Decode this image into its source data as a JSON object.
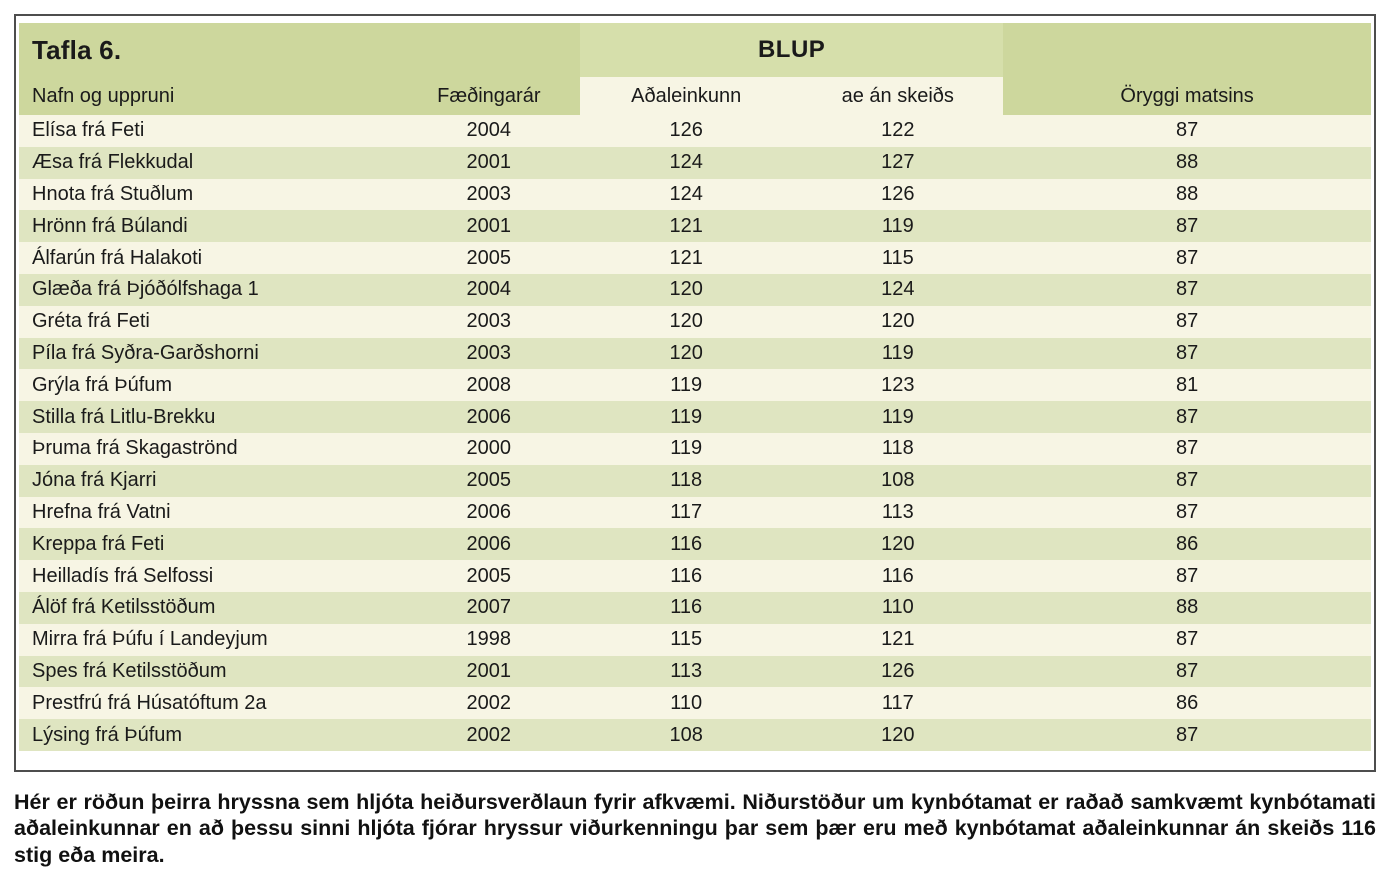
{
  "table": {
    "title": "Tafla 6.",
    "group_header": "BLUP",
    "columns": [
      "Nafn og uppruni",
      "Fæðingarár",
      "Aðaleinkunn",
      "ae án skeiðs",
      "Öryggi matsins"
    ],
    "rows": [
      [
        "Elísa frá Feti",
        "2004",
        "126",
        "122",
        "87"
      ],
      [
        "Æsa frá Flekkudal",
        "2001",
        "124",
        "127",
        "88"
      ],
      [
        "Hnota frá Stuðlum",
        "2003",
        "124",
        "126",
        "88"
      ],
      [
        "Hrönn frá Búlandi",
        "2001",
        "121",
        "119",
        "87"
      ],
      [
        "Álfarún frá Halakoti",
        "2005",
        "121",
        "115",
        "87"
      ],
      [
        "Glæða frá Þjóðólfshaga 1",
        "2004",
        "120",
        "124",
        "87"
      ],
      [
        "Gréta frá Feti",
        "2003",
        "120",
        "120",
        "87"
      ],
      [
        "Píla frá Syðra-Garðshorni",
        "2003",
        "120",
        "119",
        "87"
      ],
      [
        "Grýla frá Þúfum",
        "2008",
        "119",
        "123",
        "81"
      ],
      [
        "Stilla frá Litlu-Brekku",
        "2006",
        "119",
        "119",
        "87"
      ],
      [
        "Þruma frá Skagaströnd",
        "2000",
        "119",
        "118",
        "87"
      ],
      [
        "Jóna frá Kjarri",
        "2005",
        "118",
        "108",
        "87"
      ],
      [
        "Hrefna frá Vatni",
        "2006",
        "117",
        "113",
        "87"
      ],
      [
        "Kreppa frá Feti",
        "2006",
        "116",
        "120",
        "86"
      ],
      [
        "Heilladís frá Selfossi",
        "2005",
        "116",
        "116",
        "87"
      ],
      [
        "Álöf frá Ketilsstöðum",
        "2007",
        "116",
        "110",
        "88"
      ],
      [
        "Mirra frá Þúfu í Landeyjum",
        "1998",
        "115",
        "121",
        "87"
      ],
      [
        "Spes frá Ketilsstöðum",
        "2001",
        "113",
        "126",
        "87"
      ],
      [
        "Prestfrú frá Húsatóftum 2a",
        "2002",
        "110",
        "117",
        "86"
      ],
      [
        "Lýsing frá Þúfum",
        "2002",
        "108",
        "120",
        "87"
      ]
    ]
  },
  "caption": "Hér er röðun þeirra hryssna sem hljóta heiðursverðlaun fyrir afkvæmi. Niðurstöður um kynbótamat er raðað samkvæmt kynbótamati aðaleinkunnar en að þessu sinni hljóta fjórar hryssur viðurkenningu þar sem þær eru með kynbótamat aðaleinkunnar án skeiðs 116 stig eða meira.",
  "colors": {
    "header_green": "#cdd79d",
    "blup_green": "#d6dfab",
    "row_green": "#dfe5c1",
    "cream": "#f7f5e4",
    "border": "#4d4d4d",
    "text": "#1a1a1a"
  }
}
